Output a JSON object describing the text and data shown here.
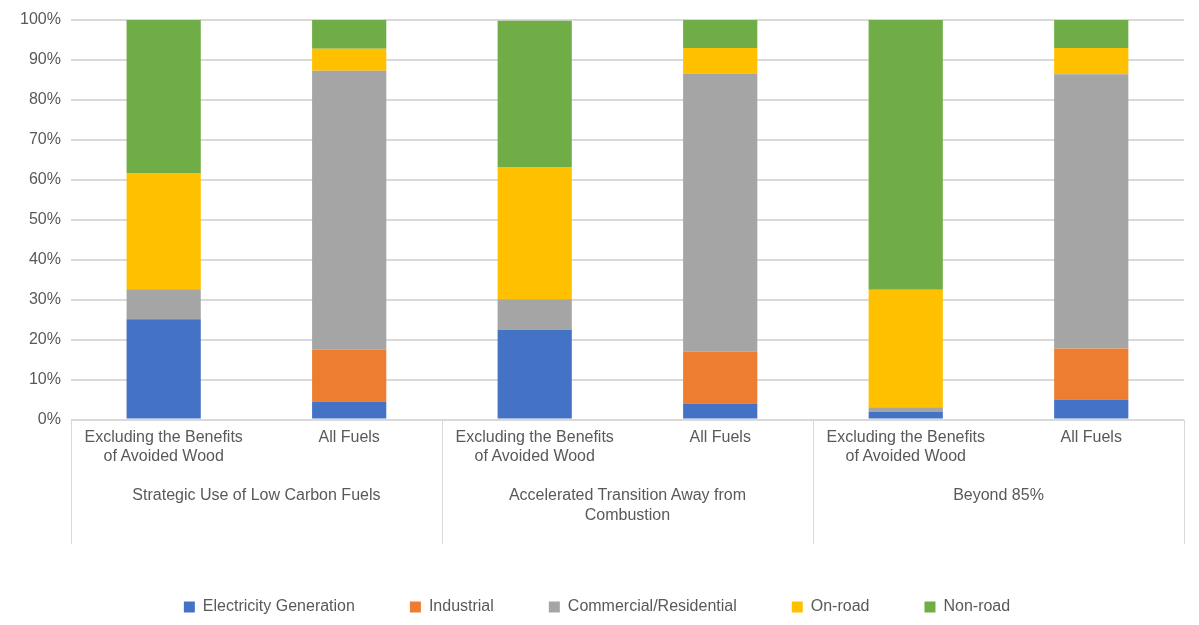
{
  "chart_data": {
    "type": "bar",
    "stacked": true,
    "categories": [
      "Excluding the Benefits of Avoided Wood",
      "All Fuels",
      "Excluding the Benefits of Avoided Wood",
      "All Fuels",
      "Excluding the Benefits of Avoided Wood",
      "All Fuels"
    ],
    "annotations": [
      "Strategic Use of Low Carbon Fuels",
      "Accelerated Transition Away from Combustion",
      "Beyond 85%"
    ],
    "series": [
      {
        "name": "Electricity Generation",
        "color": "#4472c4",
        "values": [
          25.1,
          4.5,
          22.5,
          4.0,
          1.9,
          5.0
        ]
      },
      {
        "name": "Industrial",
        "color": "#ed7d31",
        "values": [
          0,
          13.0,
          0,
          13.0,
          0,
          12.8
        ]
      },
      {
        "name": "Commercial/Residential",
        "color": "#a5a5a5",
        "values": [
          7.5,
          69.8,
          7.6,
          69.6,
          1.2,
          68.6
        ]
      },
      {
        "name": "On-road",
        "color": "#ffc000",
        "values": [
          29.1,
          5.5,
          33.1,
          6.4,
          29.4,
          6.6
        ]
      },
      {
        "name": "Non-road",
        "color": "#70ad47",
        "values": [
          38.3,
          7.2,
          36.6,
          7.0,
          67.5,
          7.0
        ]
      }
    ],
    "ylim": [
      0,
      100
    ],
    "yticks": [
      {
        "value": 0,
        "label": "0%"
      },
      {
        "value": 10,
        "label": "10%"
      },
      {
        "value": 20,
        "label": "20%"
      },
      {
        "value": 30,
        "label": "30%"
      },
      {
        "value": 40,
        "label": "40%"
      },
      {
        "value": 50,
        "label": "50%"
      },
      {
        "value": 60,
        "label": "60%"
      },
      {
        "value": 70,
        "label": "70%"
      },
      {
        "value": 80,
        "label": "80%"
      },
      {
        "value": 90,
        "label": "90%"
      },
      {
        "value": 100,
        "label": "100%"
      }
    ],
    "grid": "y",
    "legend": "bottom"
  }
}
